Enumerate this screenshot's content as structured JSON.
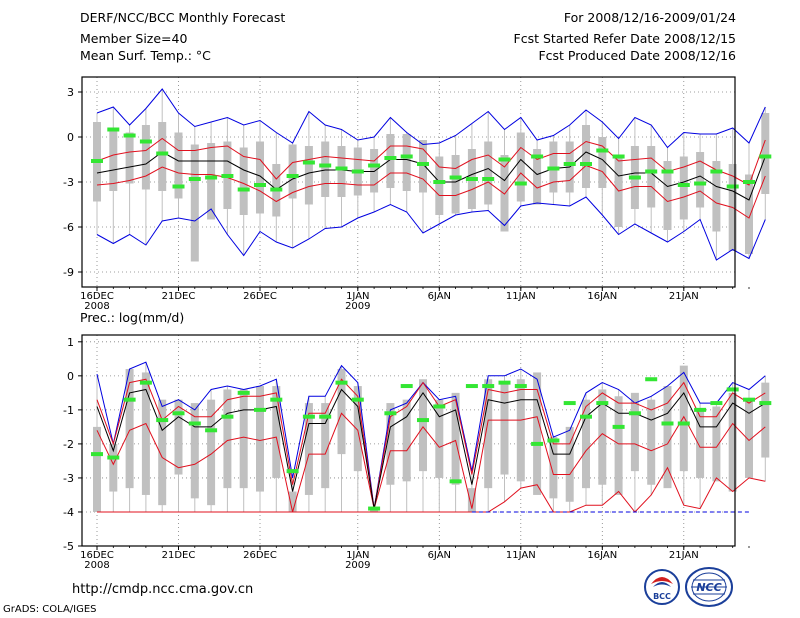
{
  "header": {
    "title": "DERF/NCC/BCC Monthly Forecast",
    "member_size": "Member Size=40",
    "variable": "Mean Surf. Temp.: °C",
    "period": "For 2008/12/16-2009/01/24",
    "fcst_started": "Fcst Started Refer Date 2008/12/15",
    "fcst_produced": "Fcst Produced Date 2008/12/16"
  },
  "footer": {
    "url": "http://cmdp.ncc.cma.gov.cn",
    "grads": "GrADS: COLA/IGES",
    "logo_bcc": "BCC",
    "logo_ncc": "NCC"
  },
  "colors": {
    "box": "#c0c0c0",
    "obs": "#33e633",
    "mean": "#000000",
    "spread": "#e0101e",
    "extreme": "#0000e0",
    "grid": "#808080"
  },
  "chart_data": [
    {
      "type": "box-ensemble",
      "title": "Mean Surf. Temp.: °C",
      "ylim": [
        -10,
        4
      ],
      "yticks": [
        3,
        0,
        -3,
        -6,
        -9
      ],
      "xlim": [
        0,
        40
      ],
      "xticks": [
        {
          "day": 1,
          "label": "16DEC",
          "sub": "2008"
        },
        {
          "day": 6,
          "label": "21DEC",
          "sub": ""
        },
        {
          "day": 11,
          "label": "26DEC",
          "sub": ""
        },
        {
          "day": 17,
          "label": "1JAN",
          "sub": "2009"
        },
        {
          "day": 22,
          "label": "6JAN",
          "sub": ""
        },
        {
          "day": 27,
          "label": "11JAN",
          "sub": ""
        },
        {
          "day": 32,
          "label": "16JAN",
          "sub": ""
        },
        {
          "day": 37,
          "label": "21JAN",
          "sub": ""
        }
      ],
      "mean": [
        -2.4,
        -2.2,
        -2,
        -1.8,
        -1,
        -1.6,
        -1.6,
        -1.6,
        -1.6,
        -2.2,
        -2.6,
        -3.5,
        -2.8,
        -2.4,
        -2.2,
        -2.2,
        -2.3,
        -2.3,
        -1.5,
        -1.5,
        -1.8,
        -3,
        -3,
        -2.5,
        -2.1,
        -2.9,
        -1.5,
        -2.5,
        -2.1,
        -2,
        -1,
        -1.5,
        -2.6,
        -2.4,
        -2.4,
        -3.3,
        -3,
        -2.6,
        -3.3,
        -3.6,
        -4.2,
        -1.3
      ],
      "upper": [
        -1.6,
        -1.2,
        -1,
        -0.9,
        -0.1,
        -0.9,
        -0.9,
        -0.7,
        -0.6,
        -1.3,
        -1.5,
        -2.8,
        -1.7,
        -1.5,
        -1.3,
        -1.4,
        -1.5,
        -1.6,
        -0.6,
        -0.6,
        -0.8,
        -2,
        -2.1,
        -1.5,
        -1.2,
        -2,
        -0.7,
        -1.5,
        -1.1,
        -1.1,
        -0.3,
        -0.6,
        -1.6,
        -1.5,
        -1.4,
        -2.3,
        -2,
        -1.6,
        -2.2,
        -2.6,
        -3.2,
        -0.2
      ],
      "lower": [
        -3.2,
        -3.1,
        -2.9,
        -2.6,
        -2,
        -2.4,
        -2.5,
        -2.5,
        -2.7,
        -3.1,
        -3.6,
        -4.3,
        -3.7,
        -3.3,
        -3.1,
        -3.1,
        -3.2,
        -3.2,
        -2.4,
        -2.4,
        -2.8,
        -3.9,
        -3.9,
        -3.5,
        -3,
        -3.8,
        -2.4,
        -3.4,
        -3,
        -2.9,
        -1.9,
        -2.3,
        -3.6,
        -3.3,
        -3.3,
        -4.3,
        -4,
        -3.6,
        -4.4,
        -4.7,
        -5.4,
        -2.6
      ],
      "max": [
        1.6,
        2,
        0.8,
        1.9,
        3.2,
        1.6,
        0.7,
        1,
        1.3,
        0.8,
        1.1,
        0.3,
        -0.4,
        1.7,
        0.8,
        0.5,
        -0.2,
        0,
        1.3,
        0.3,
        -0.5,
        -0.4,
        0.1,
        0.9,
        1.7,
        0.5,
        1.3,
        -0.2,
        0.1,
        0.8,
        1.8,
        1,
        -0.1,
        1.3,
        0.8,
        -0.7,
        0.3,
        0.2,
        0.2,
        0.6,
        -0.4,
        2
      ],
      "min": [
        -6.5,
        -7.1,
        -6.5,
        -7.2,
        -5.6,
        -5.4,
        -5.6,
        -4.8,
        -6.5,
        -7.9,
        -6.3,
        -7,
        -7.4,
        -6.8,
        -6.1,
        -6,
        -5.4,
        -5,
        -4.5,
        -5,
        -6.4,
        -5.8,
        -5.2,
        -5,
        -4.9,
        -5.9,
        -4.6,
        -4.4,
        -4.5,
        -4.6,
        -4,
        -5.2,
        -6.5,
        -5.8,
        -6.4,
        -7,
        -6.3,
        -5.5,
        -8.2,
        -7.5,
        -8.1,
        -5.5
      ],
      "box_top": [
        1,
        0.5,
        0.3,
        0.8,
        1,
        0.3,
        -0.5,
        -0.4,
        -0.3,
        -0.7,
        -0.3,
        -1.8,
        -0.5,
        -0.6,
        -0.3,
        -0.6,
        -0.7,
        -0.8,
        0.2,
        0.2,
        -0.2,
        -1.3,
        -1.2,
        -0.8,
        -0.3,
        -1.2,
        0.3,
        -0.8,
        -0.3,
        -0.3,
        0.8,
        0,
        -1.2,
        -0.6,
        -0.6,
        -1.6,
        -1.3,
        -1,
        -1.6,
        -1.8,
        -2.5,
        1.6
      ],
      "box_bottom": [
        -4.3,
        -3.6,
        -3.1,
        -3.5,
        -3.6,
        -4.1,
        -8.3,
        -5.5,
        -4.8,
        -5.2,
        -5.1,
        -5.3,
        -4.1,
        -4.5,
        -4,
        -4,
        -3.9,
        -3.7,
        -3.4,
        -3.6,
        -3.7,
        -5.2,
        -5.1,
        -4.8,
        -4.5,
        -6.3,
        -4.3,
        -4.5,
        -3.7,
        -3.7,
        -3.4,
        -3.4,
        -6,
        -4.8,
        -4.7,
        -6.2,
        -5.5,
        -4.7,
        -6.3,
        -7.6,
        -7.8,
        -3.8
      ],
      "observed": [
        -1.6,
        0.5,
        0.1,
        -0.3,
        -1.1,
        -3.3,
        -2.8,
        -2.7,
        -2.6,
        -3.5,
        -3.2,
        -3.5,
        -2.6,
        -1.7,
        -1.9,
        -2.1,
        -2.3,
        -1.9,
        -1.4,
        -1.3,
        -1.8,
        -3,
        -2.7,
        -2.8,
        -2.8,
        -1.5,
        -3.1,
        -1.3,
        -2.1,
        -1.8,
        -1.8,
        -0.9,
        -1.3,
        -2.7,
        -2.3,
        -2.3,
        -3.2,
        -3.1,
        -2.3,
        -3.3,
        -3,
        -1.3
      ]
    },
    {
      "type": "box-ensemble",
      "title": "Prec.: log(mm/d)",
      "ylim": [
        -5,
        1.2
      ],
      "yticks": [
        1,
        0,
        -1,
        -2,
        -3,
        -4,
        -5
      ],
      "xlim": [
        0,
        40
      ],
      "xticks": [
        {
          "day": 1,
          "label": "16DEC",
          "sub": "2008"
        },
        {
          "day": 6,
          "label": "21DEC",
          "sub": ""
        },
        {
          "day": 11,
          "label": "26DEC",
          "sub": ""
        },
        {
          "day": 17,
          "label": "1JAN",
          "sub": "2009"
        },
        {
          "day": 22,
          "label": "6JAN",
          "sub": ""
        },
        {
          "day": 27,
          "label": "11JAN",
          "sub": ""
        },
        {
          "day": 32,
          "label": "16JAN",
          "sub": ""
        },
        {
          "day": 37,
          "label": "21JAN",
          "sub": ""
        }
      ],
      "mean": [
        -0.9,
        -2.2,
        -0.5,
        -0.4,
        -1.6,
        -1.2,
        -1.5,
        -1.5,
        -1.1,
        -1,
        -1,
        -0.9,
        -3.4,
        -1.4,
        -1.4,
        -0.4,
        -0.9,
        -3.9,
        -1.5,
        -1.2,
        -0.5,
        -1.2,
        -1,
        -3.2,
        -0.7,
        -0.8,
        -0.7,
        -0.7,
        -2.3,
        -2.3,
        -1.2,
        -0.8,
        -1.1,
        -1.1,
        -1.3,
        -1.1,
        -0.5,
        -1.5,
        -1.5,
        -0.8,
        -1.1,
        -0.8
      ],
      "upper": [
        -0.7,
        -2,
        -0.2,
        -0.1,
        -1.3,
        -0.9,
        -1.2,
        -1.2,
        -0.7,
        -0.6,
        -0.6,
        -0.5,
        -3.2,
        -1.1,
        -1.1,
        -0.1,
        -0.6,
        -3.9,
        -1.2,
        -0.9,
        -0.2,
        -0.9,
        -0.7,
        -2.9,
        -0.4,
        -0.5,
        -0.4,
        -0.4,
        -2,
        -2,
        -0.9,
        -0.5,
        -0.8,
        -0.8,
        -1,
        -0.8,
        -0.2,
        -1.2,
        -1.2,
        -0.5,
        -0.8,
        -0.5
      ],
      "lower": [
        -1.6,
        -2.6,
        -1.6,
        -1.4,
        -2.4,
        -2.7,
        -2.6,
        -2.3,
        -1.9,
        -1.8,
        -1.9,
        -1.8,
        -4,
        -2.3,
        -2.3,
        -1.1,
        -1.6,
        -3.9,
        -2.2,
        -2.2,
        -1.5,
        -2.1,
        -1.9,
        -3.9,
        -1.3,
        -1.3,
        -1.3,
        -1.2,
        -2.9,
        -2.9,
        -2.2,
        -1.7,
        -2,
        -2,
        -2.2,
        -2,
        -1.2,
        -2.1,
        -2.1,
        -1.4,
        -1.9,
        -1.5
      ],
      "max": [
        0.05,
        -2,
        0.2,
        0.4,
        -0.9,
        -0.7,
        -1,
        -0.4,
        -0.3,
        -0.4,
        -0.3,
        -0.1,
        -3,
        -0.6,
        -0.6,
        0.3,
        -0.2,
        -3.9,
        -1,
        -0.8,
        -0.2,
        -0.7,
        -0.6,
        -2.8,
        0,
        0,
        0.2,
        -0.1,
        -1.8,
        -1.6,
        -0.5,
        -0.2,
        -0.4,
        -0.8,
        -0.6,
        -0.3,
        0.1,
        -0.8,
        -0.8,
        -0.2,
        -0.4,
        0
      ],
      "min": [
        -4,
        -4,
        -4,
        -4,
        -4,
        -4,
        -4,
        -4,
        -4,
        -4,
        -4,
        -4,
        -4,
        -4,
        -4,
        -4,
        -4,
        -4,
        -4,
        -4,
        -4,
        -4,
        -4,
        -4,
        -4,
        -3.7,
        -3.3,
        -3.2,
        -4,
        -4,
        -3.8,
        -3.8,
        -3.4,
        -4,
        -3.5,
        -2.7,
        -3.8,
        -3.9,
        -3,
        -3.4,
        -3,
        -3.1
      ],
      "box_top": [
        -1.5,
        -2,
        0.2,
        0.1,
        -0.7,
        -0.7,
        -0.8,
        -0.7,
        -0.4,
        -0.4,
        -0.3,
        -0.3,
        -3.4,
        -0.8,
        -0.8,
        0.2,
        -0.3,
        -3.9,
        -0.8,
        -0.7,
        -0.1,
        -0.7,
        -0.5,
        -3.3,
        -0.1,
        -0.2,
        -0.1,
        0.1,
        -1.8,
        -1.5,
        -0.7,
        -0.4,
        -0.6,
        -0.5,
        -0.7,
        -0.3,
        0.3,
        -1,
        -0.9,
        -0.5,
        -0.7,
        -0.2
      ],
      "box_bottom": [
        -4,
        -3.4,
        -3.3,
        -3.5,
        -3.8,
        -2.9,
        -3.6,
        -3.8,
        -3.3,
        -3.3,
        -3.4,
        -3,
        -4,
        -3.5,
        -3.3,
        -2.3,
        -2.8,
        -4,
        -3.2,
        -3.1,
        -2.8,
        -3,
        -3.2,
        -4,
        -3.3,
        -2.9,
        -3.1,
        -3.5,
        -3.6,
        -3.7,
        -3.3,
        -3.2,
        -3.5,
        -2.8,
        -3.2,
        -3.3,
        -2.8,
        -3,
        -3.1,
        -3.4,
        -3,
        -2.4
      ],
      "observed": [
        -2.3,
        -2.4,
        -0.7,
        -0.2,
        -1.3,
        -1.1,
        -1.4,
        -1.6,
        -1.2,
        -0.5,
        -1,
        -0.7,
        -2.8,
        -1.2,
        -1.2,
        -0.2,
        -0.7,
        -3.9,
        -1.1,
        -0.3,
        -1.3,
        -0.9,
        -3.1,
        -0.3,
        -0.3,
        -0.2,
        -0.3,
        -2,
        -1.9,
        -0.8,
        -1.2,
        -0.8,
        -1.5,
        -1.1,
        -0.1,
        -1.4,
        -1.4,
        -1,
        -0.8,
        -0.4,
        -0.7,
        -0.8
      ],
      "observed_start": 0
    }
  ]
}
